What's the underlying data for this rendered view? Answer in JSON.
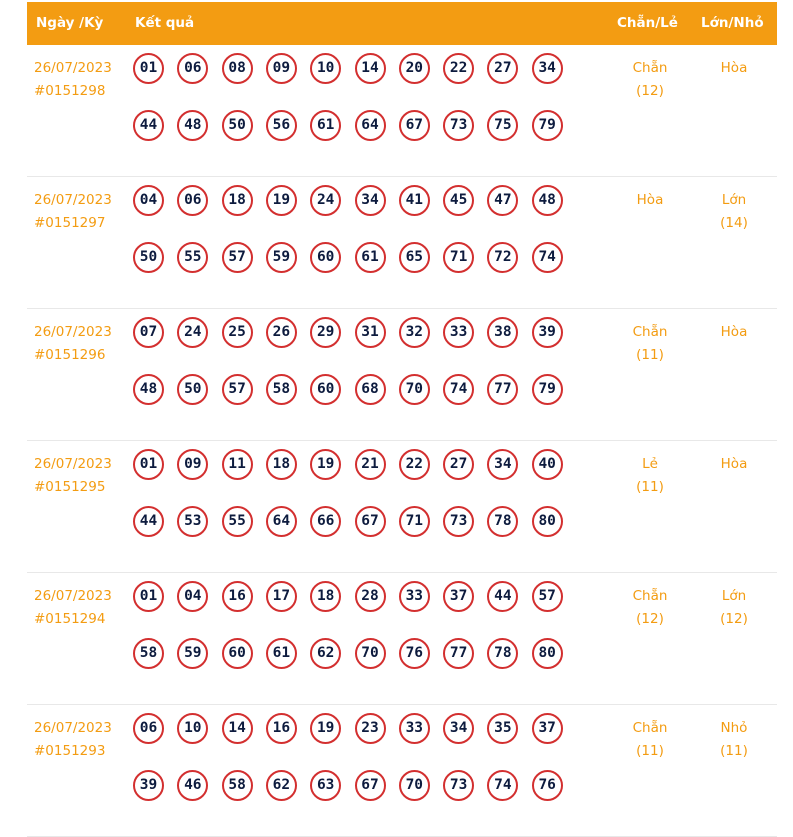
{
  "header": {
    "date_label": "Ngày /Kỳ",
    "result_label": "Kết quả",
    "even_odd_label": "Chẵn/Lẻ",
    "big_small_label": "Lớn/Nhỏ"
  },
  "rows": [
    {
      "date": "26/07/2023",
      "draw": "#0151298",
      "numbers": [
        "01",
        "06",
        "08",
        "09",
        "10",
        "14",
        "20",
        "22",
        "27",
        "34",
        "44",
        "48",
        "50",
        "56",
        "61",
        "64",
        "67",
        "73",
        "75",
        "79"
      ],
      "even_odd": "Chẵn",
      "even_odd_count": "(12)",
      "big_small": "Hòa",
      "big_small_count": ""
    },
    {
      "date": "26/07/2023",
      "draw": "#0151297",
      "numbers": [
        "04",
        "06",
        "18",
        "19",
        "24",
        "34",
        "41",
        "45",
        "47",
        "48",
        "50",
        "55",
        "57",
        "59",
        "60",
        "61",
        "65",
        "71",
        "72",
        "74"
      ],
      "even_odd": "Hòa",
      "even_odd_count": "",
      "big_small": "Lớn",
      "big_small_count": "(14)"
    },
    {
      "date": "26/07/2023",
      "draw": "#0151296",
      "numbers": [
        "07",
        "24",
        "25",
        "26",
        "29",
        "31",
        "32",
        "33",
        "38",
        "39",
        "48",
        "50",
        "57",
        "58",
        "60",
        "68",
        "70",
        "74",
        "77",
        "79"
      ],
      "even_odd": "Chẵn",
      "even_odd_count": "(11)",
      "big_small": "Hòa",
      "big_small_count": ""
    },
    {
      "date": "26/07/2023",
      "draw": "#0151295",
      "numbers": [
        "01",
        "09",
        "11",
        "18",
        "19",
        "21",
        "22",
        "27",
        "34",
        "40",
        "44",
        "53",
        "55",
        "64",
        "66",
        "67",
        "71",
        "73",
        "78",
        "80"
      ],
      "even_odd": "Lẻ",
      "even_odd_count": "(11)",
      "big_small": "Hòa",
      "big_small_count": ""
    },
    {
      "date": "26/07/2023",
      "draw": "#0151294",
      "numbers": [
        "01",
        "04",
        "16",
        "17",
        "18",
        "28",
        "33",
        "37",
        "44",
        "57",
        "58",
        "59",
        "60",
        "61",
        "62",
        "70",
        "76",
        "77",
        "78",
        "80"
      ],
      "even_odd": "Chẵn",
      "even_odd_count": "(12)",
      "big_small": "Lớn",
      "big_small_count": "(12)"
    },
    {
      "date": "26/07/2023",
      "draw": "#0151293",
      "numbers": [
        "06",
        "10",
        "14",
        "16",
        "19",
        "23",
        "33",
        "34",
        "35",
        "37",
        "39",
        "46",
        "58",
        "62",
        "63",
        "67",
        "70",
        "73",
        "74",
        "76"
      ],
      "even_odd": "Chẵn",
      "even_odd_count": "(11)",
      "big_small": "Nhỏ",
      "big_small_count": "(11)"
    }
  ],
  "colors": {
    "accent": "#f39c12",
    "ball_border": "#d32f2f",
    "ball_text": "#0d1b3e"
  }
}
